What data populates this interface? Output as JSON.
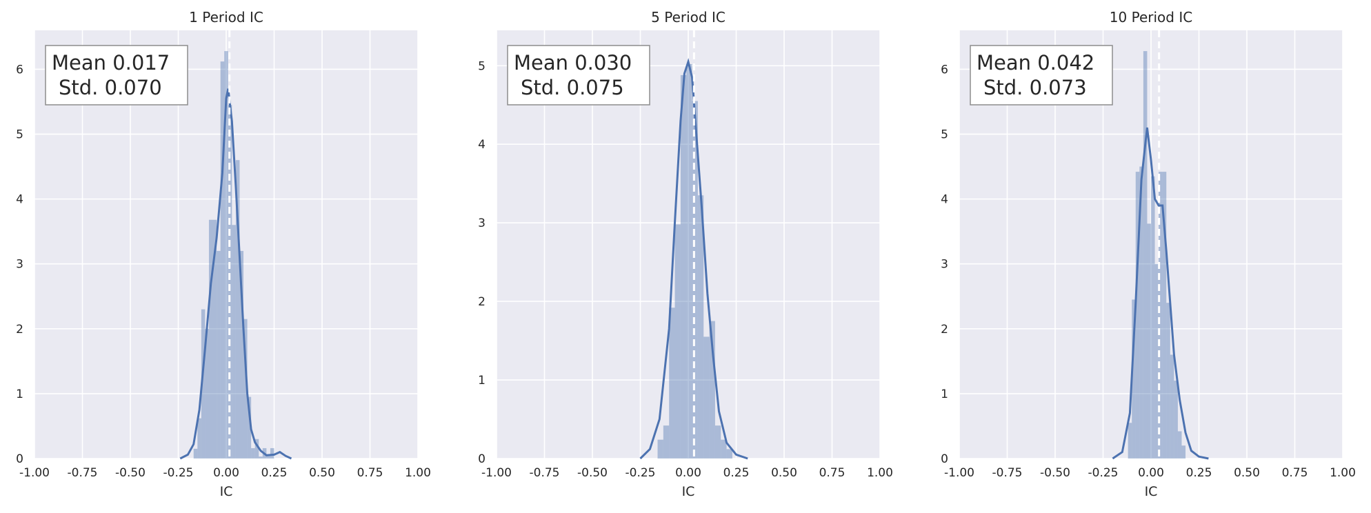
{
  "chart_data": [
    {
      "type": "histogram",
      "title": "1 Period IC",
      "xlabel": "IC",
      "ylabel": "",
      "xlim": [
        -1.0,
        1.0
      ],
      "ylim": [
        0,
        6.6
      ],
      "xticks": [
        "-1.00",
        "-0.75",
        "-0.50",
        "-0.25",
        "0.00",
        "0.25",
        "0.50",
        "0.75",
        "1.00"
      ],
      "yticks": [
        "0",
        "1",
        "2",
        "3",
        "4",
        "5",
        "6"
      ],
      "grid": true,
      "stats_box": {
        "mean_label": "Mean 0.017",
        "std_label": "Std. 0.070"
      },
      "mean_line_x": 0.017,
      "bins": [
        {
          "x0": -0.17,
          "x1": -0.15,
          "y": 0.15
        },
        {
          "x0": -0.15,
          "x1": -0.13,
          "y": 0.62
        },
        {
          "x0": -0.13,
          "x1": -0.11,
          "y": 2.3
        },
        {
          "x0": -0.11,
          "x1": -0.09,
          "y": 2.0
        },
        {
          "x0": -0.09,
          "x1": -0.05,
          "y": 3.68
        },
        {
          "x0": -0.05,
          "x1": -0.03,
          "y": 3.2
        },
        {
          "x0": -0.03,
          "x1": -0.01,
          "y": 6.12
        },
        {
          "x0": -0.01,
          "x1": 0.01,
          "y": 6.28
        },
        {
          "x0": 0.01,
          "x1": 0.03,
          "y": 5.45
        },
        {
          "x0": 0.03,
          "x1": 0.05,
          "y": 3.6
        },
        {
          "x0": 0.05,
          "x1": 0.07,
          "y": 4.6
        },
        {
          "x0": 0.07,
          "x1": 0.09,
          "y": 3.2
        },
        {
          "x0": 0.09,
          "x1": 0.11,
          "y": 2.15
        },
        {
          "x0": 0.11,
          "x1": 0.13,
          "y": 0.95
        },
        {
          "x0": 0.13,
          "x1": 0.15,
          "y": 0.16
        },
        {
          "x0": 0.15,
          "x1": 0.17,
          "y": 0.3
        },
        {
          "x0": 0.17,
          "x1": 0.19,
          "y": 0.03
        },
        {
          "x0": 0.19,
          "x1": 0.21,
          "y": 0.16
        },
        {
          "x0": 0.21,
          "x1": 0.23,
          "y": 0.06
        },
        {
          "x0": 0.23,
          "x1": 0.25,
          "y": 0.16
        }
      ],
      "kde": [
        [
          -0.24,
          0.0
        ],
        [
          -0.2,
          0.06
        ],
        [
          -0.17,
          0.22
        ],
        [
          -0.14,
          0.75
        ],
        [
          -0.11,
          1.7
        ],
        [
          -0.08,
          2.7
        ],
        [
          -0.05,
          3.4
        ],
        [
          -0.02,
          4.4
        ],
        [
          0.0,
          5.55
        ],
        [
          0.01,
          5.7
        ],
        [
          0.03,
          5.2
        ],
        [
          0.05,
          4.2
        ],
        [
          0.07,
          3.1
        ],
        [
          0.09,
          2.0
        ],
        [
          0.11,
          1.0
        ],
        [
          0.13,
          0.45
        ],
        [
          0.15,
          0.25
        ],
        [
          0.18,
          0.12
        ],
        [
          0.21,
          0.05
        ],
        [
          0.25,
          0.06
        ],
        [
          0.28,
          0.1
        ],
        [
          0.31,
          0.04
        ],
        [
          0.34,
          0.0
        ]
      ]
    },
    {
      "type": "histogram",
      "title": "5 Period IC",
      "xlabel": "IC",
      "ylabel": "",
      "xlim": [
        -1.0,
        1.0
      ],
      "ylim": [
        0,
        5.45
      ],
      "xticks": [
        "-1.00",
        "-0.75",
        "-0.50",
        "-0.25",
        "0.00",
        "0.25",
        "0.50",
        "0.75",
        "1.00"
      ],
      "yticks": [
        "0",
        "1",
        "2",
        "3",
        "4",
        "5"
      ],
      "grid": true,
      "stats_box": {
        "mean_label": "Mean 0.030",
        "std_label": "Std. 0.075"
      },
      "mean_line_x": 0.03,
      "bins": [
        {
          "x0": -0.16,
          "x1": -0.13,
          "y": 0.24
        },
        {
          "x0": -0.13,
          "x1": -0.1,
          "y": 0.42
        },
        {
          "x0": -0.1,
          "x1": -0.07,
          "y": 1.92
        },
        {
          "x0": -0.07,
          "x1": -0.04,
          "y": 2.98
        },
        {
          "x0": -0.04,
          "x1": -0.01,
          "y": 4.88
        },
        {
          "x0": -0.01,
          "x1": 0.02,
          "y": 5.02
        },
        {
          "x0": 0.02,
          "x1": 0.05,
          "y": 4.55
        },
        {
          "x0": 0.05,
          "x1": 0.08,
          "y": 3.35
        },
        {
          "x0": 0.08,
          "x1": 0.11,
          "y": 1.55
        },
        {
          "x0": 0.11,
          "x1": 0.14,
          "y": 1.75
        },
        {
          "x0": 0.14,
          "x1": 0.17,
          "y": 0.42
        },
        {
          "x0": 0.17,
          "x1": 0.2,
          "y": 0.24
        },
        {
          "x0": 0.2,
          "x1": 0.23,
          "y": 0.12
        }
      ],
      "kde": [
        [
          -0.25,
          0.0
        ],
        [
          -0.2,
          0.12
        ],
        [
          -0.15,
          0.5
        ],
        [
          -0.1,
          1.65
        ],
        [
          -0.07,
          3.0
        ],
        [
          -0.04,
          4.3
        ],
        [
          -0.02,
          4.9
        ],
        [
          0.0,
          5.05
        ],
        [
          0.02,
          4.85
        ],
        [
          0.04,
          4.2
        ],
        [
          0.07,
          3.2
        ],
        [
          0.1,
          2.1
        ],
        [
          0.13,
          1.3
        ],
        [
          0.16,
          0.6
        ],
        [
          0.2,
          0.2
        ],
        [
          0.25,
          0.05
        ],
        [
          0.31,
          0.0
        ]
      ]
    },
    {
      "type": "histogram",
      "title": "10 Period IC",
      "xlabel": "IC",
      "ylabel": "",
      "xlim": [
        -1.0,
        1.0
      ],
      "ylim": [
        0,
        6.6
      ],
      "xticks": [
        "-1.00",
        "-0.75",
        "-0.50",
        "-0.25",
        "0.00",
        "0.25",
        "0.50",
        "0.75",
        "1.00"
      ],
      "yticks": [
        "0",
        "1",
        "2",
        "3",
        "4",
        "5",
        "6"
      ],
      "grid": true,
      "stats_box": {
        "mean_label": "Mean 0.042",
        "std_label": "Std. 0.073"
      },
      "mean_line_x": 0.042,
      "bins": [
        {
          "x0": -0.12,
          "x1": -0.1,
          "y": 0.55
        },
        {
          "x0": -0.1,
          "x1": -0.08,
          "y": 2.45
        },
        {
          "x0": -0.08,
          "x1": -0.06,
          "y": 4.42
        },
        {
          "x0": -0.06,
          "x1": -0.04,
          "y": 4.5
        },
        {
          "x0": -0.04,
          "x1": -0.02,
          "y": 6.28
        },
        {
          "x0": -0.02,
          "x1": 0.0,
          "y": 3.62
        },
        {
          "x0": 0.0,
          "x1": 0.02,
          "y": 4.35
        },
        {
          "x0": 0.02,
          "x1": 0.04,
          "y": 3.0
        },
        {
          "x0": 0.04,
          "x1": 0.06,
          "y": 4.42
        },
        {
          "x0": 0.06,
          "x1": 0.08,
          "y": 4.42
        },
        {
          "x0": 0.08,
          "x1": 0.1,
          "y": 2.4
        },
        {
          "x0": 0.1,
          "x1": 0.12,
          "y": 1.6
        },
        {
          "x0": 0.12,
          "x1": 0.14,
          "y": 1.2
        },
        {
          "x0": 0.14,
          "x1": 0.16,
          "y": 0.42
        },
        {
          "x0": 0.16,
          "x1": 0.18,
          "y": 0.2
        }
      ],
      "kde": [
        [
          -0.2,
          0.0
        ],
        [
          -0.15,
          0.1
        ],
        [
          -0.11,
          0.7
        ],
        [
          -0.08,
          2.4
        ],
        [
          -0.05,
          4.3
        ],
        [
          -0.02,
          5.1
        ],
        [
          0.0,
          4.6
        ],
        [
          0.02,
          4.0
        ],
        [
          0.04,
          3.9
        ],
        [
          0.06,
          3.9
        ],
        [
          0.08,
          3.2
        ],
        [
          0.1,
          2.4
        ],
        [
          0.12,
          1.6
        ],
        [
          0.15,
          0.9
        ],
        [
          0.18,
          0.4
        ],
        [
          0.21,
          0.12
        ],
        [
          0.25,
          0.03
        ],
        [
          0.3,
          0.0
        ]
      ]
    }
  ],
  "colors": {
    "axes_background": "#eaeaf2",
    "grid": "#ffffff",
    "bar_fill": "#4c72b0",
    "kde_line": "#4c72b0",
    "mean_line": "#ffffff",
    "text": "#262626",
    "stats_box_border": "#8c8c8c"
  }
}
